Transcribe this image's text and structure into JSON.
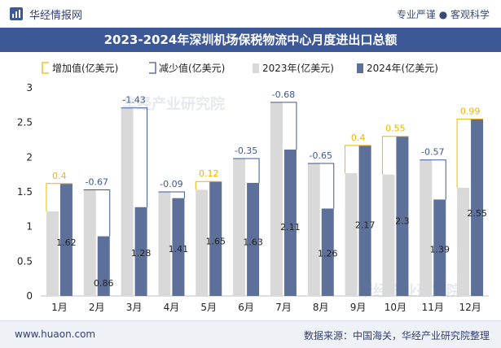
{
  "header": {
    "brand": "华经情报网",
    "right_text": "专业严谨 ● 客观科学"
  },
  "title": "2023-2024年深圳机场保税物流中心月度进出口总额",
  "footer": {
    "site": "www.huaon.com",
    "source": "数据来源：中国海关，华经产业研究院整理"
  },
  "watermark": "华经产业研究院",
  "colors": {
    "header_bg": "#3d5896",
    "series_2023": "#d9d9d9",
    "series_2024": "#5d7099",
    "increase": "#f0b400",
    "decrease": "#3d5896",
    "text": "#222222"
  },
  "chart_data": {
    "type": "bar",
    "categories": [
      "1月",
      "2月",
      "3月",
      "4月",
      "5月",
      "6月",
      "7月",
      "8月",
      "9月",
      "10月",
      "11月",
      "12月"
    ],
    "series": [
      {
        "name": "2023年(亿美元)",
        "values": [
          1.22,
          1.53,
          2.71,
          1.5,
          1.53,
          1.98,
          2.79,
          1.91,
          1.77,
          1.75,
          1.96,
          1.56
        ]
      },
      {
        "name": "2024年(亿美元)",
        "values": [
          1.62,
          0.86,
          1.28,
          1.41,
          1.65,
          1.63,
          2.11,
          1.26,
          2.17,
          2.3,
          1.39,
          2.55
        ]
      }
    ],
    "changes": [
      0.4,
      -0.67,
      -1.43,
      -0.09,
      0.12,
      -0.35,
      -0.68,
      -0.65,
      0.4,
      0.55,
      -0.57,
      0.99
    ],
    "legend": [
      "增加值(亿美元)",
      "减少值(亿美元)",
      "2023年(亿美元)",
      "2024年(亿美元)"
    ],
    "ylim": [
      0,
      3
    ],
    "yticks": [
      0,
      0.5,
      1,
      1.5,
      2,
      2.5,
      3
    ],
    "legend_position": "top"
  }
}
